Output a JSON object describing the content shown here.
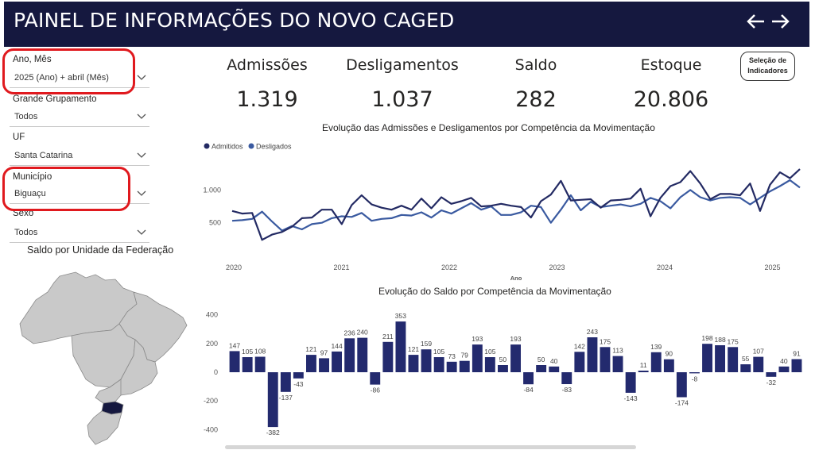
{
  "header": {
    "title": "PAINEL DE INFORMAÇÕES DO NOVO CAGED",
    "back_icon": "arrow-left-icon",
    "forward_icon": "arrow-right-icon"
  },
  "filters": [
    {
      "label": "Ano, Mês",
      "value": "2025 (Ano) + abril (Mês)"
    },
    {
      "label": "Grande Grupamento",
      "value": "Todos"
    },
    {
      "label": "UF",
      "value": "Santa Catarina"
    },
    {
      "label": "Município",
      "value": "Biguaçu"
    },
    {
      "label": "Sexo",
      "value": "Todos"
    }
  ],
  "kpis": [
    {
      "label": "Admissões",
      "value": "1.319"
    },
    {
      "label": "Desligamentos",
      "value": "1.037"
    },
    {
      "label": "Saldo",
      "value": "282"
    },
    {
      "label": "Estoque",
      "value": "20.806"
    }
  ],
  "selection_button": {
    "line1": "Seleção de",
    "line2": "Indicadores"
  },
  "map": {
    "title": "Saldo por Unidade da Federação",
    "base_color": "#c9c9c9",
    "highlight_color": "#15183f"
  },
  "colors": {
    "admitidos": "#232a63",
    "desligados": "#3a5aa0",
    "saldo_bar": "#232a6e",
    "header": "#15183f",
    "highlight": "#e0191e"
  },
  "chart_data": [
    {
      "type": "line",
      "title": "Evolução das Admissões e Desligamentos por Competência da Movimentação",
      "xlabel": "Ano",
      "ylabel": "",
      "x_ticks": [
        "2020",
        "2021",
        "2022",
        "2023",
        "2024",
        "2025"
      ],
      "y_ticks": [
        "500",
        "1.000"
      ],
      "ylim": [
        0,
        1550
      ],
      "legend_position": "top-left",
      "series": [
        {
          "name": "Admitidos",
          "values": [
            680,
            640,
            650,
            240,
            320,
            360,
            440,
            570,
            580,
            700,
            700,
            480,
            770,
            920,
            780,
            730,
            700,
            760,
            700,
            870,
            720,
            890,
            790,
            830,
            880,
            750,
            760,
            790,
            760,
            740,
            580,
            830,
            930,
            1140,
            840,
            850,
            860,
            730,
            840,
            850,
            870,
            1020,
            600,
            880,
            1060,
            1120,
            1290,
            1100,
            860,
            940,
            940,
            920,
            1100,
            680,
            1080,
            1270,
            1180,
            1319
          ]
        },
        {
          "name": "Desligados",
          "values": [
            530,
            540,
            560,
            670,
            520,
            380,
            450,
            400,
            480,
            500,
            570,
            600,
            590,
            650,
            530,
            560,
            570,
            620,
            610,
            660,
            580,
            690,
            640,
            720,
            800,
            700,
            750,
            620,
            620,
            660,
            760,
            740,
            500,
            700,
            920,
            690,
            820,
            740,
            760,
            780,
            750,
            790,
            880,
            830,
            720,
            890,
            1000,
            890,
            840,
            880,
            890,
            880,
            780,
            880,
            980,
            1060,
            1150,
            1037
          ]
        }
      ]
    },
    {
      "type": "bar",
      "title": "Evolução do Saldo por Competência da Movimentação",
      "y_ticks": [
        "-400",
        "-200",
        "0",
        "200",
        "400"
      ],
      "ylim": [
        -420,
        420
      ],
      "values": [
        147,
        105,
        108,
        -382,
        -137,
        -43,
        121,
        97,
        144,
        236,
        240,
        -86,
        211,
        353,
        121,
        159,
        105,
        73,
        79,
        193,
        105,
        50,
        193,
        -84,
        50,
        40,
        -83,
        142,
        243,
        175,
        113,
        -143,
        11,
        139,
        90,
        -174,
        -8,
        198,
        188,
        175,
        55,
        107,
        -32,
        40,
        91
      ],
      "data_labels": [
        "147",
        "105",
        "108",
        "-382",
        "-137",
        "-43",
        "121",
        "97",
        "144",
        "236",
        "240",
        "-86",
        "211",
        "353",
        "121",
        "159",
        "105",
        "73",
        "79",
        "193",
        "105",
        "50",
        "193",
        "-84",
        "50",
        "40",
        "-83",
        "142",
        "243",
        "175",
        "113",
        "-143",
        "11",
        "139",
        "90",
        "-174",
        "-8",
        "198",
        "188",
        "175",
        "55",
        "107",
        "-32",
        "40",
        "91"
      ]
    }
  ]
}
